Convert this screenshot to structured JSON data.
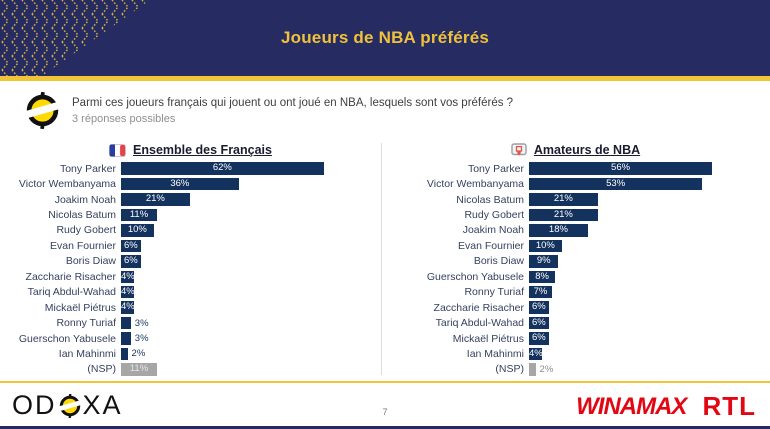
{
  "header": {
    "title": "Joueurs de NBA préférés"
  },
  "question": {
    "icon": "odoxa-mark-icon",
    "text": "Parmi ces joueurs français qui jouent ou ont joué en NBA, lesquels sont vos préférés ?",
    "subtext": "3 réponses possibles"
  },
  "chart_data": [
    {
      "type": "bar",
      "orientation": "horizontal",
      "title": "Ensemble des Français",
      "icon": "france-flag-icon",
      "unit": "%",
      "value_labels": "on",
      "xlim": [
        0,
        70
      ],
      "categories": [
        "Tony Parker",
        "Victor Wembanyama",
        "Joakim Noah",
        "Nicolas Batum",
        "Rudy Gobert",
        "Evan Fournier",
        "Boris Diaw",
        "Zaccharie Risacher",
        "Tariq Abdul-Wahad",
        "Mickaël Piétrus",
        "Ronny Turiaf",
        "Guerschon Yabusele",
        "Ian Mahinmi",
        "(NSP)"
      ],
      "values": [
        62,
        36,
        21,
        11,
        10,
        6,
        6,
        4,
        4,
        4,
        3,
        3,
        2,
        11
      ],
      "bar_color": "#14325E",
      "nsp_color": "#A6A6A6"
    },
    {
      "type": "bar",
      "orientation": "horizontal",
      "title": "Amateurs de NBA",
      "icon": "basketball-hoop-icon",
      "unit": "%",
      "value_labels": "on",
      "xlim": [
        0,
        70
      ],
      "categories": [
        "Tony Parker",
        "Victor Wembanyama",
        "Nicolas Batum",
        "Rudy Gobert",
        "Joakim Noah",
        "Evan Fournier",
        "Boris Diaw",
        "Guerschon Yabusele",
        "Ronny Turiaf",
        "Zaccharie Risacher",
        "Tariq Abdul-Wahad",
        "Mickaël Piétrus",
        "Ian Mahinmi",
        "(NSP)"
      ],
      "values": [
        56,
        53,
        21,
        21,
        18,
        10,
        9,
        8,
        7,
        6,
        6,
        6,
        4,
        2
      ],
      "bar_color": "#14325E",
      "nsp_color": "#A6A6A6"
    }
  ],
  "footer": {
    "page_number": "7",
    "odoxa_left": "OD",
    "odoxa_right": "XA",
    "winamax": "WINAMAX",
    "rtl": "RTL"
  },
  "colors": {
    "header_navy": "#262C62",
    "gold": "#F2C437",
    "title_gold": "#F0C13B",
    "bar_navy": "#14325E",
    "nsp_gray": "#A6A6A6",
    "brand_red": "#E30613"
  }
}
